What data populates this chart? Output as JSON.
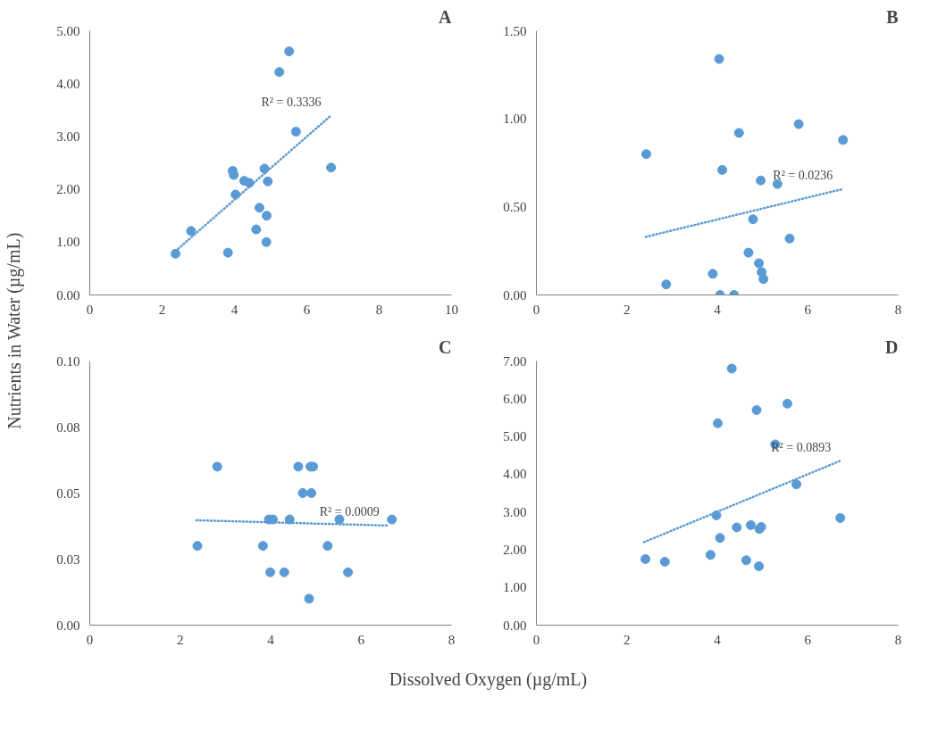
{
  "chart_data": [
    {
      "type": "scatter",
      "title": "A",
      "ylabel": "Nutrients in Water (µg/mL)",
      "xlim": [
        0,
        10
      ],
      "xticks": [
        0,
        2,
        4,
        6,
        8,
        10
      ],
      "ylim": [
        0,
        5
      ],
      "yticks": [
        {
          "value": 0,
          "label": "0.00"
        },
        {
          "value": 1,
          "label": "1.00"
        },
        {
          "value": 2,
          "label": "2.00"
        },
        {
          "value": 3,
          "label": "3.00"
        },
        {
          "value": 4,
          "label": "4.00"
        },
        {
          "value": 5,
          "label": "5.00"
        }
      ],
      "grid": false,
      "series": [
        {
          "marker": "circle",
          "color": "#5b9bd5",
          "x": [
            5.51,
            5.24,
            5.7,
            6.67,
            3.95,
            3.98,
            4.83,
            4.27,
            4.41,
            4.92,
            4.03,
            4.69,
            4.89,
            2.8,
            4.6,
            4.88,
            2.37,
            3.82
          ],
          "values": [
            4.61,
            4.22,
            3.09,
            2.41,
            2.35,
            2.27,
            2.39,
            2.16,
            2.12,
            2.15,
            1.9,
            1.65,
            1.5,
            1.21,
            1.24,
            1.0,
            0.78,
            0.8
          ]
        },
        {
          "type": "line",
          "line_style": "dotted",
          "color": "#5b9bd5",
          "x": [
            2.37,
            6.64
          ],
          "values": [
            0.83,
            3.38
          ]
        }
      ],
      "annotations": [
        "R² = 0.3336"
      ]
    },
    {
      "type": "scatter",
      "title": "B",
      "xlim": [
        0,
        8
      ],
      "xticks": [
        0,
        2,
        4,
        6,
        8
      ],
      "ylim": [
        0,
        1.5
      ],
      "yticks": [
        {
          "value": 0,
          "label": "0.00"
        },
        {
          "value": 0.5,
          "label": "0.50"
        },
        {
          "value": 1,
          "label": "1.00"
        },
        {
          "value": 1.5,
          "label": "1.50"
        }
      ],
      "grid": false,
      "series": [
        {
          "marker": "circle",
          "color": "#5b9bd5",
          "x": [
            4.04,
            5.8,
            4.48,
            6.78,
            2.43,
            4.11,
            4.96,
            5.33,
            4.79,
            5.6,
            4.69,
            4.92,
            4.98,
            5.02,
            3.9,
            2.87,
            4.06,
            4.37
          ],
          "values": [
            1.34,
            0.97,
            0.92,
            0.88,
            0.8,
            0.71,
            0.65,
            0.63,
            0.43,
            0.32,
            0.24,
            0.18,
            0.13,
            0.09,
            0.12,
            0.06,
            0.0,
            0.0
          ]
        },
        {
          "type": "line",
          "line_style": "dotted",
          "color": "#5b9bd5",
          "x": [
            2.42,
            6.75
          ],
          "values": [
            0.33,
            0.6
          ]
        }
      ],
      "annotations": [
        "R² = 0.0236"
      ]
    },
    {
      "type": "scatter",
      "title": "C",
      "xlabel": "Dissolved Oxygen (µg/mL)",
      "xlim": [
        0,
        8
      ],
      "xticks": [
        0,
        2,
        4,
        6,
        8
      ],
      "ylim": [
        0,
        0.1
      ],
      "yticks": [
        {
          "value": 0,
          "label": "0.00"
        },
        {
          "value": 0.025,
          "label": "0.03"
        },
        {
          "value": 0.05,
          "label": "0.05"
        },
        {
          "value": 0.075,
          "label": "0.08"
        },
        {
          "value": 0.1,
          "label": "0.10"
        }
      ],
      "grid": false,
      "series": [
        {
          "marker": "circle",
          "color": "#5b9bd5",
          "x": [
            2.82,
            4.61,
            4.88,
            4.94,
            4.71,
            4.9,
            3.96,
            4.05,
            4.42,
            5.52,
            6.68,
            2.38,
            3.83,
            5.26,
            3.99,
            4.3,
            5.71,
            4.85
          ],
          "values": [
            0.06,
            0.06,
            0.06,
            0.06,
            0.05,
            0.05,
            0.04,
            0.04,
            0.04,
            0.04,
            0.04,
            0.03,
            0.03,
            0.03,
            0.02,
            0.02,
            0.02,
            0.01
          ]
        },
        {
          "type": "line",
          "line_style": "dotted",
          "color": "#5b9bd5",
          "x": [
            2.36,
            6.6
          ],
          "values": [
            0.0397,
            0.0377
          ]
        }
      ],
      "annotations": [
        "R² = 0.0009"
      ]
    },
    {
      "type": "scatter",
      "title": "D",
      "xlim": [
        0,
        8
      ],
      "xticks": [
        0,
        2,
        4,
        6,
        8
      ],
      "ylim": [
        0,
        7
      ],
      "yticks": [
        {
          "value": 0,
          "label": "0.00"
        },
        {
          "value": 1,
          "label": "1.00"
        },
        {
          "value": 2,
          "label": "2.00"
        },
        {
          "value": 3,
          "label": "3.00"
        },
        {
          "value": 4,
          "label": "4.00"
        },
        {
          "value": 5,
          "label": "5.00"
        },
        {
          "value": 6,
          "label": "6.00"
        },
        {
          "value": 7,
          "label": "7.00"
        }
      ],
      "grid": false,
      "series": [
        {
          "marker": "circle",
          "color": "#5b9bd5",
          "x": [
            4.32,
            5.55,
            4.87,
            4.01,
            5.28,
            5.75,
            6.72,
            3.98,
            4.43,
            4.74,
            4.93,
            4.97,
            4.06,
            2.41,
            2.84,
            3.85,
            4.64,
            4.92
          ],
          "values": [
            6.8,
            5.87,
            5.7,
            5.35,
            4.79,
            3.73,
            2.84,
            2.91,
            2.59,
            2.65,
            2.55,
            2.6,
            2.31,
            1.75,
            1.68,
            1.86,
            1.72,
            1.56
          ]
        },
        {
          "type": "line",
          "line_style": "dotted",
          "color": "#5b9bd5",
          "x": [
            2.38,
            6.71
          ],
          "values": [
            2.2,
            4.35
          ]
        }
      ],
      "annotations": [
        "R² = 0.0893"
      ]
    }
  ]
}
